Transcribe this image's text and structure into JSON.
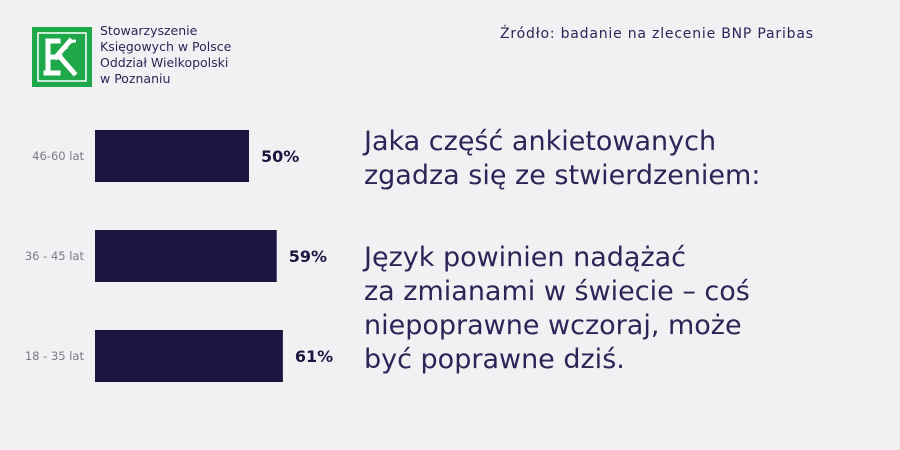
{
  "header": {
    "org_lines": [
      "Stowarzyszenie",
      "Księgowych w Polsce",
      "Oddział Wielkopolski",
      "w Poznaniu"
    ],
    "logo_letters": "SK",
    "source": "Źródło: badanie na zlecenie BNP Paribas"
  },
  "colors": {
    "bar": "#1c1540",
    "text": "#2c2557",
    "label": "#7a7a8a",
    "logo_green": "#1ea84a",
    "background": "#f1f0f2"
  },
  "chart_data": {
    "type": "bar",
    "orientation": "horizontal",
    "categories": [
      "46-60 lat",
      "36 - 45 lat",
      "18 - 35 lat"
    ],
    "values": [
      50,
      59,
      61
    ],
    "value_labels": [
      "50%",
      "59%",
      "61%"
    ],
    "xlim": [
      0,
      100
    ],
    "grid": false,
    "legend": "none"
  },
  "question": {
    "lines": [
      "Jaka część ankietowanych",
      "zgadza się ze stwierdzeniem:"
    ]
  },
  "statement": {
    "lines": [
      "Język powinien nadążać",
      "za zmianami w świecie – coś",
      "niepoprawne wczoraj, może",
      "być poprawne dziś."
    ]
  }
}
